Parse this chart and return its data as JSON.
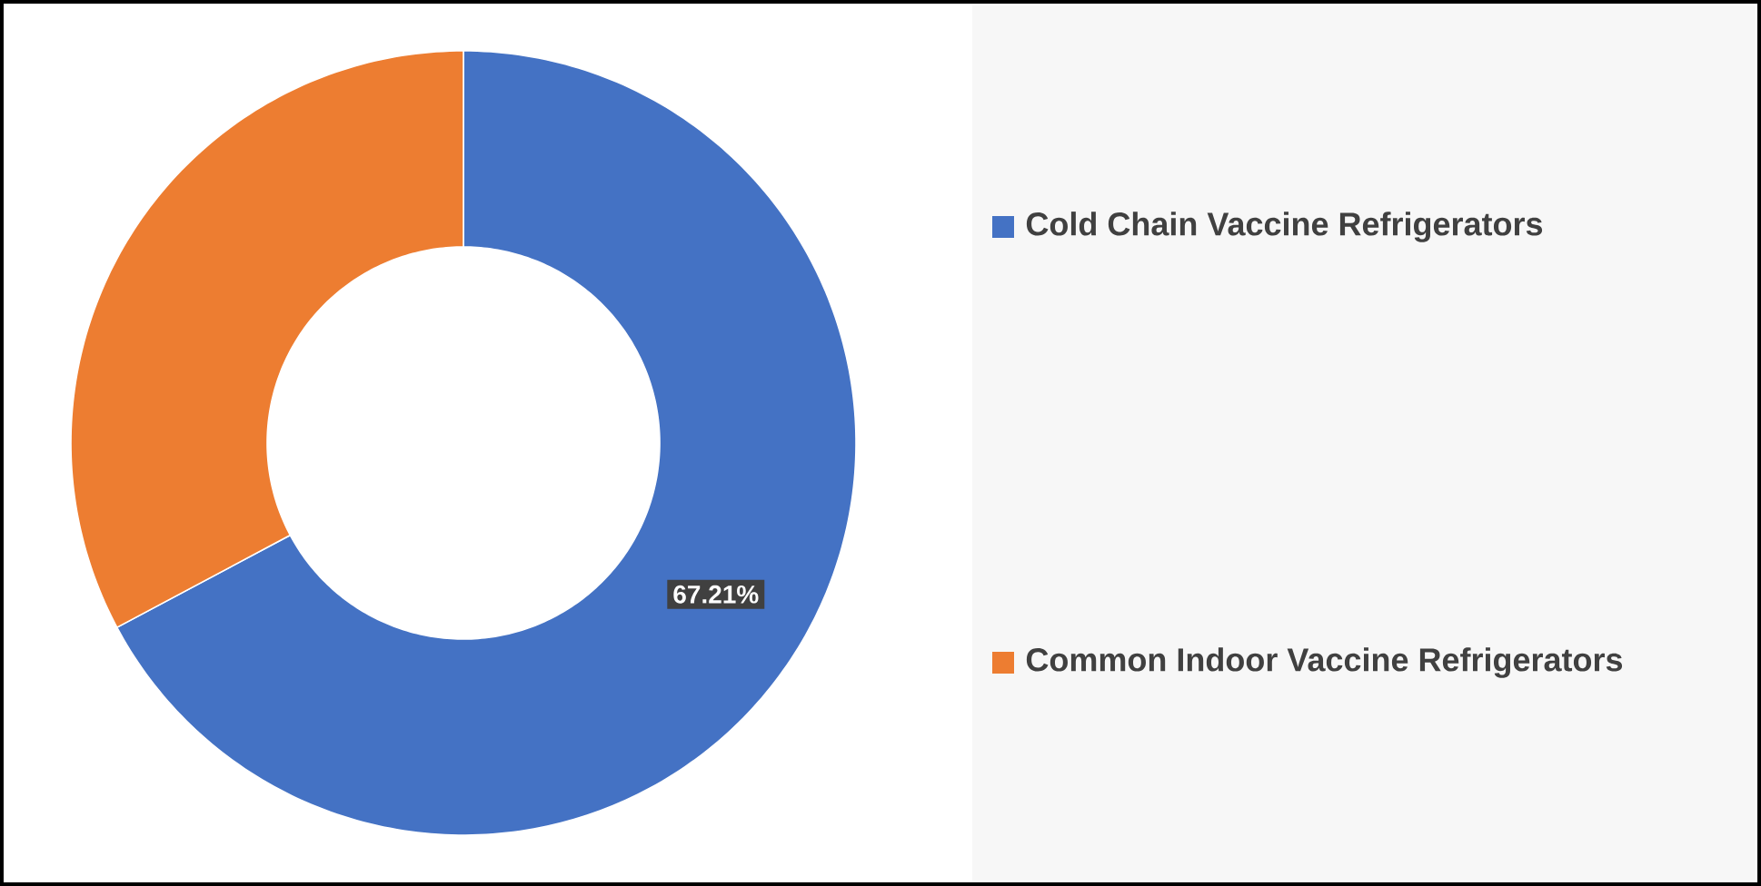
{
  "chart_data": {
    "type": "donut",
    "categories": [
      "Cold Chain Vaccine Refrigerators",
      "Common Indoor Vaccine Refrigerators"
    ],
    "values": [
      67.21,
      32.79
    ],
    "colors": [
      "#4472c4",
      "#ed7d31"
    ],
    "value_labels": [
      "67.21%",
      null
    ],
    "legend": "right"
  }
}
